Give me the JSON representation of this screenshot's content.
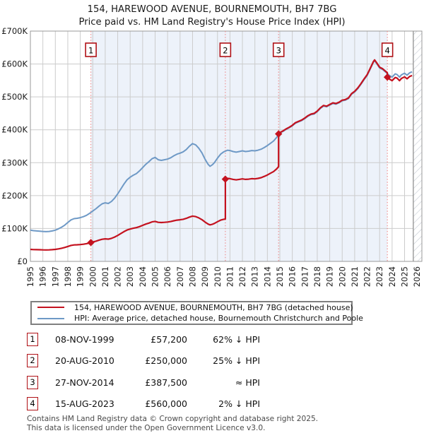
{
  "title": "154, HAREWOOD AVENUE, BOURNEMOUTH, BH7 7BG",
  "subtitle": "Price paid vs. HM Land Registry's House Price Index (HPI)",
  "chart_data": {
    "type": "line",
    "title": "154, HAREWOOD AVENUE, BOURNEMOUTH, BH7 7BG",
    "subtitle": "Price paid vs. HM Land Registry's House Price Index (HPI)",
    "ylim": [
      0,
      700000
    ],
    "y_ticks": [
      {
        "v": 0,
        "label": "£0"
      },
      {
        "v": 100000,
        "label": "£100K"
      },
      {
        "v": 200000,
        "label": "£200K"
      },
      {
        "v": 300000,
        "label": "£300K"
      },
      {
        "v": 400000,
        "label": "£400K"
      },
      {
        "v": 500000,
        "label": "£500K"
      },
      {
        "v": 600000,
        "label": "£600K"
      },
      {
        "v": 700000,
        "label": "£700K"
      }
    ],
    "x_years": [
      "1995",
      "1996",
      "1997",
      "1998",
      "1999",
      "2000",
      "2001",
      "2002",
      "2003",
      "2004",
      "2005",
      "2006",
      "2007",
      "2008",
      "2009",
      "2010",
      "2011",
      "2012",
      "2013",
      "2014",
      "2015",
      "2016",
      "2017",
      "2018",
      "2019",
      "2020",
      "2021",
      "2022",
      "2023",
      "2024",
      "2025",
      "2026"
    ],
    "band": [
      1999.85,
      2023.62
    ],
    "future_start": 2025.7,
    "grid": true,
    "legend_position": "below",
    "hpi_series": {
      "name": "HPI: Average price, detached house, Bournemouth Christchurch and Poole",
      "color": "#6e99c6",
      "points": [
        [
          1995.0,
          95000
        ],
        [
          1995.25,
          93500
        ],
        [
          1995.5,
          92500
        ],
        [
          1995.75,
          92000
        ],
        [
          1996.0,
          91000
        ],
        [
          1996.25,
          90500
        ],
        [
          1996.5,
          91000
        ],
        [
          1996.75,
          92500
        ],
        [
          1997.0,
          95000
        ],
        [
          1997.25,
          99000
        ],
        [
          1997.5,
          104000
        ],
        [
          1997.75,
          110000
        ],
        [
          1998.0,
          118000
        ],
        [
          1998.25,
          126000
        ],
        [
          1998.5,
          130000
        ],
        [
          1998.75,
          131000
        ],
        [
          1999.0,
          133000
        ],
        [
          1999.25,
          136000
        ],
        [
          1999.5,
          140000
        ],
        [
          1999.75,
          146000
        ],
        [
          2000.0,
          153000
        ],
        [
          2000.25,
          160000
        ],
        [
          2000.5,
          168000
        ],
        [
          2000.75,
          175000
        ],
        [
          2001.0,
          178000
        ],
        [
          2001.25,
          176000
        ],
        [
          2001.5,
          182000
        ],
        [
          2001.75,
          192000
        ],
        [
          2002.0,
          205000
        ],
        [
          2002.25,
          220000
        ],
        [
          2002.5,
          235000
        ],
        [
          2002.75,
          248000
        ],
        [
          2003.0,
          256000
        ],
        [
          2003.25,
          262000
        ],
        [
          2003.5,
          267000
        ],
        [
          2003.75,
          275000
        ],
        [
          2004.0,
          285000
        ],
        [
          2004.25,
          295000
        ],
        [
          2004.5,
          303000
        ],
        [
          2004.75,
          312000
        ],
        [
          2005.0,
          316000
        ],
        [
          2005.25,
          309000
        ],
        [
          2005.5,
          307000
        ],
        [
          2005.75,
          309000
        ],
        [
          2006.0,
          311000
        ],
        [
          2006.25,
          315000
        ],
        [
          2006.5,
          321000
        ],
        [
          2006.75,
          326000
        ],
        [
          2007.0,
          329000
        ],
        [
          2007.25,
          333000
        ],
        [
          2007.5,
          340000
        ],
        [
          2007.75,
          350000
        ],
        [
          2008.0,
          358000
        ],
        [
          2008.25,
          354000
        ],
        [
          2008.5,
          344000
        ],
        [
          2008.75,
          330000
        ],
        [
          2009.0,
          311000
        ],
        [
          2009.25,
          295000
        ],
        [
          2009.4,
          289000
        ],
        [
          2009.6,
          294000
        ],
        [
          2009.75,
          300000
        ],
        [
          2010.0,
          314000
        ],
        [
          2010.25,
          326000
        ],
        [
          2010.5,
          333000
        ],
        [
          2010.63,
          335000
        ],
        [
          2010.8,
          338000
        ],
        [
          2011.0,
          337000
        ],
        [
          2011.25,
          334000
        ],
        [
          2011.5,
          332000
        ],
        [
          2011.75,
          334000
        ],
        [
          2012.0,
          336000
        ],
        [
          2012.25,
          334000
        ],
        [
          2012.5,
          335000
        ],
        [
          2012.75,
          337000
        ],
        [
          2013.0,
          336000
        ],
        [
          2013.25,
          338000
        ],
        [
          2013.5,
          341000
        ],
        [
          2013.75,
          346000
        ],
        [
          2014.0,
          352000
        ],
        [
          2014.25,
          359000
        ],
        [
          2014.5,
          366000
        ],
        [
          2014.75,
          377000
        ],
        [
          2014.9,
          386000
        ],
        [
          2015.0,
          390000
        ],
        [
          2015.25,
          395000
        ],
        [
          2015.5,
          401000
        ],
        [
          2015.75,
          406000
        ],
        [
          2016.0,
          412000
        ],
        [
          2016.25,
          420000
        ],
        [
          2016.5,
          424000
        ],
        [
          2016.75,
          428000
        ],
        [
          2017.0,
          434000
        ],
        [
          2017.25,
          441000
        ],
        [
          2017.5,
          446000
        ],
        [
          2017.75,
          448000
        ],
        [
          2018.0,
          455000
        ],
        [
          2018.25,
          465000
        ],
        [
          2018.5,
          472000
        ],
        [
          2018.75,
          470000
        ],
        [
          2019.0,
          475000
        ],
        [
          2019.25,
          480000
        ],
        [
          2019.5,
          478000
        ],
        [
          2019.75,
          482000
        ],
        [
          2020.0,
          488000
        ],
        [
          2020.25,
          490000
        ],
        [
          2020.5,
          495000
        ],
        [
          2020.75,
          508000
        ],
        [
          2021.0,
          515000
        ],
        [
          2021.25,
          525000
        ],
        [
          2021.5,
          538000
        ],
        [
          2021.75,
          552000
        ],
        [
          2022.0,
          565000
        ],
        [
          2022.25,
          585000
        ],
        [
          2022.5,
          605000
        ],
        [
          2022.6,
          610000
        ],
        [
          2022.75,
          602000
        ],
        [
          2023.0,
          588000
        ],
        [
          2023.25,
          583000
        ],
        [
          2023.5,
          575000
        ],
        [
          2023.62,
          571000
        ],
        [
          2023.75,
          566000
        ],
        [
          2024.0,
          560000
        ],
        [
          2024.25,
          570000
        ],
        [
          2024.4,
          568000
        ],
        [
          2024.6,
          560000
        ],
        [
          2024.75,
          567000
        ],
        [
          2025.0,
          572000
        ],
        [
          2025.2,
          566000
        ],
        [
          2025.4,
          573000
        ],
        [
          2025.6,
          576000
        ]
      ]
    },
    "price_series": {
      "name": "154, HAREWOOD AVENUE, BOURNEMOUTH, BH7 7BG (detached house)",
      "color": "#c4121f",
      "ratio_segments": [
        {
          "from": 1995.0,
          "ratio": 0.3844
        },
        {
          "from": 2010.63,
          "ratio": 0.7463
        },
        {
          "from": 2014.9,
          "ratio": 1.0039
        },
        {
          "from": 2023.62,
          "ratio": 0.9807
        }
      ]
    },
    "sales": [
      {
        "n": "1",
        "date": "08-NOV-1999",
        "t": 1999.85,
        "price": 57200,
        "price_label": "£57,200",
        "vs_hpi": "62% ↓ HPI"
      },
      {
        "n": "2",
        "date": "20-AUG-2010",
        "t": 2010.63,
        "price": 250000,
        "price_label": "£250,000",
        "vs_hpi": "25% ↓ HPI"
      },
      {
        "n": "3",
        "date": "27-NOV-2014",
        "t": 2014.9,
        "price": 387500,
        "price_label": "£387,500",
        "vs_hpi": "≈ HPI"
      },
      {
        "n": "4",
        "date": "15-AUG-2023",
        "t": 2023.62,
        "price": 560000,
        "price_label": "£560,000",
        "vs_hpi": "2% ↓ HPI"
      }
    ],
    "colors": {
      "band": "#edf2fa",
      "grid": "#cccccc",
      "frame": "#999999",
      "sale_dash": "#ee8888",
      "flag_border": "#b01116",
      "hatch": "#c3c9d2",
      "now_line": "#888888"
    }
  },
  "legend": {
    "entries": [
      {
        "key": "price_series"
      },
      {
        "key": "hpi_series"
      }
    ]
  },
  "footer": {
    "line1": "Contains HM Land Registry data © Crown copyright and database right 2025.",
    "line2": "This data is licensed under the Open Government Licence v3.0."
  }
}
